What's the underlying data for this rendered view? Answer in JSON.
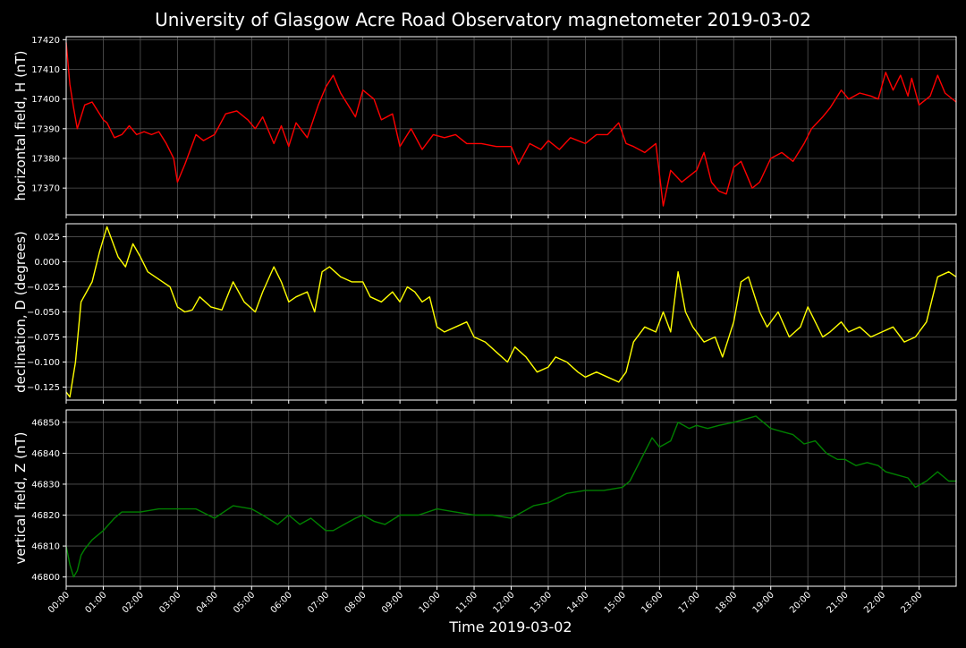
{
  "title": "University of Glasgow Acre Road Observatory magnetometer 2019-03-02",
  "xlabel": "Time 2019-03-02",
  "x_ticks": [
    "00:00",
    "01:00",
    "02:00",
    "03:00",
    "04:00",
    "05:00",
    "06:00",
    "07:00",
    "08:00",
    "09:00",
    "10:00",
    "11:00",
    "12:00",
    "13:00",
    "14:00",
    "15:00",
    "16:00",
    "17:00",
    "18:00",
    "19:00",
    "20:00",
    "21:00",
    "22:00",
    "23:00"
  ],
  "chart_data": [
    {
      "type": "line",
      "ylabel": "horizontal field, H (nT)",
      "color": "#ff0000",
      "xlim": [
        0,
        24
      ],
      "ylim": [
        17361,
        17421
      ],
      "yticks": [
        17370,
        17380,
        17390,
        17400,
        17410,
        17420
      ],
      "grid": true,
      "x": [
        0.0,
        0.1,
        0.2,
        0.3,
        0.5,
        0.7,
        1.0,
        1.1,
        1.3,
        1.5,
        1.7,
        1.9,
        2.1,
        2.3,
        2.5,
        2.7,
        2.9,
        3.0,
        3.2,
        3.5,
        3.7,
        4.0,
        4.3,
        4.6,
        4.9,
        5.1,
        5.3,
        5.6,
        5.8,
        6.0,
        6.2,
        6.5,
        6.8,
        7.0,
        7.2,
        7.4,
        7.6,
        7.8,
        8.0,
        8.3,
        8.5,
        8.8,
        9.0,
        9.3,
        9.6,
        9.9,
        10.2,
        10.5,
        10.8,
        11.2,
        11.6,
        12.0,
        12.2,
        12.5,
        12.8,
        13.0,
        13.3,
        13.6,
        14.0,
        14.3,
        14.6,
        14.9,
        15.1,
        15.3,
        15.6,
        15.9,
        16.1,
        16.3,
        16.6,
        17.0,
        17.2,
        17.4,
        17.6,
        17.8,
        18.0,
        18.2,
        18.5,
        18.7,
        19.0,
        19.3,
        19.6,
        19.9,
        20.1,
        20.4,
        20.6,
        20.9,
        21.1,
        21.4,
        21.7,
        21.9,
        22.1,
        22.3,
        22.5,
        22.7,
        22.8,
        23.0,
        23.3,
        23.5,
        23.7,
        24.0
      ],
      "values": [
        17419,
        17405,
        17397,
        17390,
        17398,
        17399,
        17393,
        17392,
        17387,
        17388,
        17391,
        17388,
        17389,
        17388,
        17389,
        17385,
        17380,
        17372,
        17378,
        17388,
        17386,
        17388,
        17395,
        17396,
        17393,
        17390,
        17394,
        17385,
        17391,
        17384,
        17392,
        17387,
        17398,
        17404,
        17408,
        17402,
        17398,
        17394,
        17403,
        17400,
        17393,
        17395,
        17384,
        17390,
        17383,
        17388,
        17387,
        17388,
        17385,
        17385,
        17384,
        17384,
        17378,
        17385,
        17383,
        17386,
        17383,
        17387,
        17385,
        17388,
        17388,
        17392,
        17385,
        17384,
        17382,
        17385,
        17364,
        17376,
        17372,
        17376,
        17382,
        17372,
        17369,
        17368,
        17377,
        17379,
        17370,
        17372,
        17380,
        17382,
        17379,
        17385,
        17390,
        17394,
        17397,
        17403,
        17400,
        17402,
        17401,
        17400,
        17409,
        17403,
        17408,
        17401,
        17407,
        17398,
        17401,
        17408,
        17402,
        17399
      ]
    },
    {
      "type": "line",
      "ylabel": "declination, D (degrees)",
      "color": "#ffff00",
      "xlim": [
        0,
        24
      ],
      "ylim": [
        -0.138,
        0.038
      ],
      "yticks": [
        -0.125,
        -0.1,
        -0.075,
        -0.05,
        -0.025,
        0.0,
        0.025
      ],
      "ytick_labels": [
        "−0.125",
        "−0.100",
        "−0.075",
        "−0.050",
        "−0.025",
        "0.000",
        "0.025"
      ],
      "grid": true,
      "x": [
        0.0,
        0.1,
        0.25,
        0.4,
        0.55,
        0.7,
        0.9,
        1.1,
        1.25,
        1.4,
        1.6,
        1.8,
        2.0,
        2.2,
        2.4,
        2.6,
        2.8,
        3.0,
        3.2,
        3.4,
        3.6,
        3.9,
        4.2,
        4.5,
        4.8,
        5.1,
        5.3,
        5.6,
        5.8,
        6.0,
        6.2,
        6.5,
        6.7,
        6.9,
        7.1,
        7.4,
        7.7,
        8.0,
        8.2,
        8.5,
        8.8,
        9.0,
        9.2,
        9.4,
        9.6,
        9.8,
        10.0,
        10.2,
        10.5,
        10.8,
        11.0,
        11.3,
        11.6,
        11.9,
        12.1,
        12.4,
        12.7,
        13.0,
        13.2,
        13.5,
        13.8,
        14.0,
        14.3,
        14.6,
        14.9,
        15.1,
        15.3,
        15.6,
        15.9,
        16.1,
        16.3,
        16.5,
        16.7,
        16.9,
        17.2,
        17.5,
        17.7,
        18.0,
        18.2,
        18.4,
        18.7,
        18.9,
        19.2,
        19.5,
        19.8,
        20.0,
        20.2,
        20.4,
        20.6,
        20.9,
        21.1,
        21.4,
        21.7,
        22.0,
        22.3,
        22.6,
        22.9,
        23.2,
        23.5,
        23.8,
        24.0
      ],
      "values": [
        -0.13,
        -0.135,
        -0.1,
        -0.04,
        -0.03,
        -0.02,
        0.01,
        0.035,
        0.02,
        0.005,
        -0.005,
        0.018,
        0.005,
        -0.01,
        -0.015,
        -0.02,
        -0.025,
        -0.045,
        -0.05,
        -0.048,
        -0.035,
        -0.045,
        -0.048,
        -0.02,
        -0.04,
        -0.05,
        -0.03,
        -0.005,
        -0.02,
        -0.04,
        -0.035,
        -0.03,
        -0.05,
        -0.01,
        -0.005,
        -0.015,
        -0.02,
        -0.02,
        -0.035,
        -0.04,
        -0.03,
        -0.04,
        -0.025,
        -0.03,
        -0.04,
        -0.035,
        -0.065,
        -0.07,
        -0.065,
        -0.06,
        -0.075,
        -0.08,
        -0.09,
        -0.1,
        -0.085,
        -0.095,
        -0.11,
        -0.105,
        -0.095,
        -0.1,
        -0.11,
        -0.115,
        -0.11,
        -0.115,
        -0.12,
        -0.11,
        -0.08,
        -0.065,
        -0.07,
        -0.05,
        -0.07,
        -0.01,
        -0.05,
        -0.065,
        -0.08,
        -0.075,
        -0.095,
        -0.06,
        -0.02,
        -0.015,
        -0.05,
        -0.065,
        -0.05,
        -0.075,
        -0.065,
        -0.045,
        -0.06,
        -0.075,
        -0.07,
        -0.06,
        -0.07,
        -0.065,
        -0.075,
        -0.07,
        -0.065,
        -0.08,
        -0.075,
        -0.06,
        -0.015,
        -0.01,
        -0.015
      ]
    },
    {
      "type": "line",
      "ylabel": "vertical field, Z (nT)",
      "color": "#008000",
      "xlim": [
        0,
        24
      ],
      "ylim": [
        46797,
        46854
      ],
      "yticks": [
        46800,
        46810,
        46820,
        46830,
        46840,
        46850
      ],
      "grid": true,
      "x": [
        0.0,
        0.1,
        0.2,
        0.3,
        0.4,
        0.5,
        0.7,
        1.0,
        1.3,
        1.5,
        1.8,
        2.0,
        2.5,
        3.0,
        3.5,
        4.0,
        4.5,
        5.0,
        5.3,
        5.7,
        6.0,
        6.3,
        6.6,
        7.0,
        7.2,
        7.5,
        7.8,
        8.0,
        8.3,
        8.6,
        9.0,
        9.5,
        10.0,
        10.5,
        11.0,
        11.5,
        12.0,
        12.3,
        12.6,
        13.0,
        13.5,
        14.0,
        14.5,
        15.0,
        15.2,
        15.5,
        15.8,
        16.0,
        16.3,
        16.5,
        16.8,
        17.0,
        17.3,
        17.6,
        18.0,
        18.3,
        18.6,
        18.8,
        19.0,
        19.3,
        19.6,
        19.9,
        20.2,
        20.5,
        20.8,
        21.0,
        21.3,
        21.6,
        21.9,
        22.1,
        22.4,
        22.7,
        22.9,
        23.2,
        23.5,
        23.8,
        24.0
      ],
      "values": [
        46810,
        46804,
        46800,
        46802,
        46807,
        46809,
        46812,
        46815,
        46819,
        46821,
        46821,
        46821,
        46822,
        46822,
        46822,
        46819,
        46823,
        46822,
        46820,
        46817,
        46820,
        46817,
        46819,
        46815,
        46815,
        46817,
        46819,
        46820,
        46818,
        46817,
        46820,
        46820,
        46822,
        46821,
        46820,
        46820,
        46819,
        46821,
        46823,
        46824,
        46827,
        46828,
        46828,
        46829,
        46831,
        46838,
        46845,
        46842,
        46844,
        46850,
        46848,
        46849,
        46848,
        46849,
        46850,
        46851,
        46852,
        46850,
        46848,
        46847,
        46846,
        46843,
        46844,
        46840,
        46838,
        46838,
        46836,
        46837,
        46836,
        46834,
        46833,
        46832,
        46829,
        46831,
        46834,
        46831,
        46831
      ]
    }
  ]
}
